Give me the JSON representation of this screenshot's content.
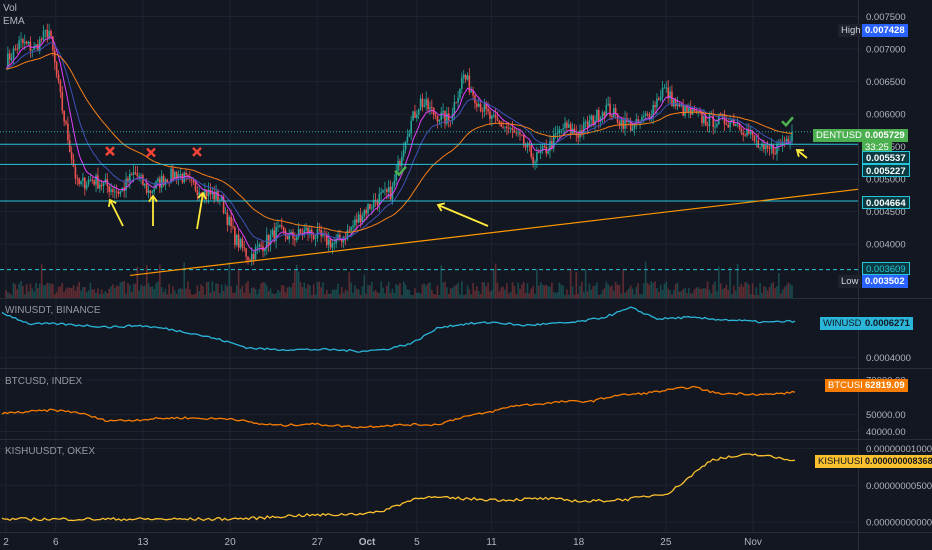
{
  "indicators": {
    "vol": "Vol",
    "ema": "EMA"
  },
  "panes": {
    "main": {
      "symbol_label": "DENTUSDT",
      "high_label": "High",
      "low_label": "Low"
    },
    "win": {
      "title": "WINUSDT, BINANCE",
      "label": "WINUSDT"
    },
    "btc": {
      "title": "BTCUSD, INDEX",
      "label": "BTCUSD"
    },
    "kishu": {
      "title": "KISHUUSDT, OKEX",
      "label": "KISHUUSDT"
    }
  },
  "main_axis": {
    "ticks": [
      "0.007500",
      "0.007000",
      "0.006500",
      "0.006000",
      "0.005500",
      "0.005000",
      "0.004500",
      "0.004000"
    ],
    "price_tags": {
      "high": "0.007428",
      "current": "0.005729",
      "countdown": "33:25",
      "level1": "0.005537",
      "level2": "0.005227",
      "level3": "0.004664",
      "level4": "0.003609",
      "low": "0.003502"
    }
  },
  "win_axis": {
    "ticks": [
      "0.0004000"
    ],
    "value": "0.0006271"
  },
  "btc_axis": {
    "ticks": [
      "70000.00",
      "50000.00",
      "40000.00"
    ],
    "value": "62819.09"
  },
  "kishu_axis": {
    "ticks": [
      "0.000000010000",
      "0.000000005000",
      "0.000000000000"
    ],
    "value": "0.000000008368"
  },
  "x_axis": {
    "ticks": [
      "2",
      "6",
      "13",
      "20",
      "27",
      "Oct",
      "5",
      "11",
      "18",
      "25",
      "Nov"
    ]
  },
  "colors": {
    "background": "#131722",
    "up": "#26a69a",
    "down": "#ef5350",
    "ema_fast": "#e040fb",
    "ema_slow": "#f57f17",
    "trendline": "#ff9800",
    "levels": "#26c6da",
    "win": "#29b6d8",
    "btc": "#f57c00",
    "kishu": "#fbc02d",
    "arrow": "#ffeb3b",
    "check": "#4caf50",
    "cross": "#f44336"
  },
  "chart_data": [
    {
      "type": "candlestick",
      "title": "DENTUSDT",
      "x_ticks": [
        "2",
        "6",
        "13",
        "20",
        "27",
        "Oct",
        "5",
        "11",
        "18",
        "25",
        "Nov"
      ],
      "ylim": [
        0.00345,
        0.0076
      ],
      "close_path": [
        [
          "2",
          0.0068
        ],
        [
          "4",
          0.0071
        ],
        [
          "6",
          0.007
        ],
        [
          "7",
          0.0073
        ],
        [
          "8",
          0.006
        ],
        [
          "9",
          0.0049
        ],
        [
          "10",
          0.005
        ],
        [
          "11",
          0.0049
        ],
        [
          "12",
          0.0048
        ],
        [
          "13",
          0.0051
        ],
        [
          "14",
          0.0048
        ],
        [
          "15",
          0.005
        ],
        [
          "16",
          0.0051
        ],
        [
          "17",
          0.0049
        ],
        [
          "18",
          0.0048
        ],
        [
          "19",
          0.0047
        ],
        [
          "20",
          0.0041
        ],
        [
          "21",
          0.0038
        ],
        [
          "22",
          0.004
        ],
        [
          "23",
          0.0042
        ],
        [
          "24",
          0.0041
        ],
        [
          "25",
          0.0042
        ],
        [
          "26",
          0.0041
        ],
        [
          "27",
          0.004
        ],
        [
          "28",
          0.0042
        ],
        [
          "29",
          0.0045
        ],
        [
          "30",
          0.0047
        ],
        [
          "Oct 1",
          0.0048
        ],
        [
          "Oct 2",
          0.0057
        ],
        [
          "Oct 3",
          0.0062
        ],
        [
          "Oct 4",
          0.006
        ],
        [
          "Oct 5",
          0.0059
        ],
        [
          "Oct 6",
          0.0066
        ],
        [
          "Oct 7",
          0.0062
        ],
        [
          "Oct 8",
          0.0059
        ],
        [
          "Oct 9",
          0.0058
        ],
        [
          "Oct 10",
          0.0056
        ],
        [
          "Oct 11",
          0.0053
        ],
        [
          "Oct 12",
          0.0055
        ],
        [
          "Oct 13",
          0.0058
        ],
        [
          "Oct 14",
          0.0057
        ],
        [
          "Oct 15",
          0.0059
        ],
        [
          "Oct 16",
          0.0061
        ],
        [
          "Oct 17",
          0.0059
        ],
        [
          "Oct 18",
          0.0058
        ],
        [
          "Oct 19",
          0.006
        ],
        [
          "Oct 20",
          0.0064
        ],
        [
          "Oct 21",
          0.0061
        ],
        [
          "Oct 22",
          0.006
        ],
        [
          "Oct 23",
          0.0059
        ],
        [
          "Oct 24",
          0.0059
        ],
        [
          "Oct 25",
          0.0059
        ],
        [
          "Oct 26",
          0.0057
        ],
        [
          "Oct 27",
          0.0054
        ],
        [
          "Oct 28",
          0.0055
        ],
        [
          "Oct 29",
          0.0057
        ]
      ],
      "levels": [
        0.005537,
        0.005227,
        0.004664,
        0.003609
      ],
      "high": 0.007428,
      "low": 0.003502,
      "current": 0.005729
    },
    {
      "type": "line",
      "title": "WINUSDT, BINANCE",
      "ylim": [
        0.00036,
        0.00074
      ],
      "series": [
        {
          "name": "WINUSDT",
          "values": [
            0.00068,
            0.00061,
            0.00061,
            0.0006,
            0.00059,
            0.0006,
            0.00058,
            0.00055,
            0.00051,
            0.00046,
            0.00045,
            0.00045,
            0.00045,
            0.00044,
            0.00045,
            0.00049,
            0.00059,
            0.00061,
            0.00062,
            0.0006,
            0.00061,
            0.00062,
            0.00065,
            0.00071,
            0.00064,
            0.00065,
            0.00064,
            0.00063,
            0.00062,
            0.000627
          ]
        }
      ],
      "last": 0.0006271
    },
    {
      "type": "line",
      "title": "BTCUSD, INDEX",
      "ylim": [
        38000,
        74000
      ],
      "series": [
        {
          "name": "BTCUSD",
          "values": [
            50500,
            51500,
            52500,
            51000,
            46500,
            46500,
            47500,
            48000,
            47500,
            47500,
            44500,
            43500,
            44500,
            43500,
            42500,
            43500,
            44000,
            44000,
            48500,
            51000,
            55000,
            56000,
            57500,
            57500,
            61000,
            62000,
            64000,
            66000,
            62000,
            62000,
            61500,
            62819
          ]
        }
      ],
      "last": 62819.09
    },
    {
      "type": "line",
      "title": "KISHUUSDT, OKEX",
      "ylim": [
        -8e-10,
        1.06e-08
      ],
      "series": [
        {
          "name": "KISHUUSDT",
          "values": [
            4e-10,
            4e-10,
            4e-10,
            4e-10,
            4e-10,
            4e-10,
            5e-10,
            9e-10,
            1e-09,
            1.3e-09,
            3.4e-09,
            3.2e-09,
            3e-09,
            3.2e-09,
            2.8e-09,
            3.1e-09,
            4e-09,
            8.5e-09,
            9.2e-09,
            8.4e-09
          ]
        }
      ],
      "last": 8.368e-09
    }
  ]
}
